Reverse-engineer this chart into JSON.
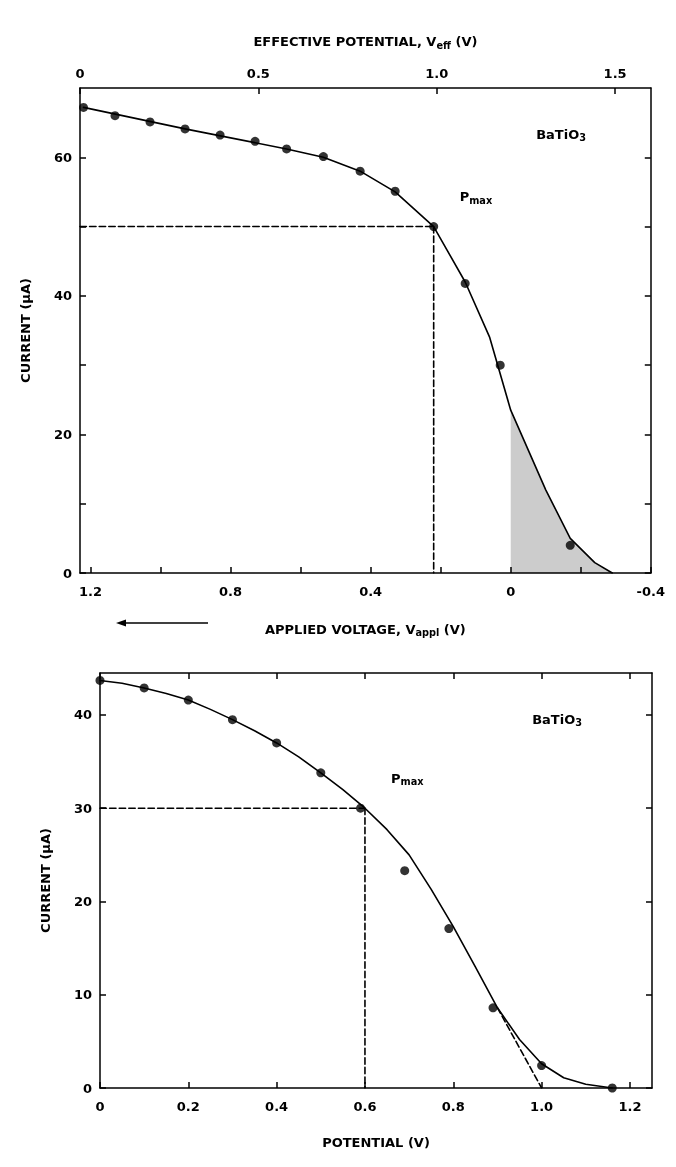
{
  "chart_data": [
    {
      "type": "scatter",
      "xlabel": "APPLIED VOLTAGE, V$_{appl}$ (V)",
      "x2label": "EFFECTIVE POTENTIAL, V$_{eff}$ (V)",
      "ylabel": "CURRENT (μA)",
      "xlim": [
        1.23,
        -0.4
      ],
      "xticks": [
        1.2,
        {
          "value": 1,
          "label": null
        },
        0.8,
        {
          "value": 0.6,
          "label": null
        },
        0.4,
        {
          "value": 0.2,
          "label": null
        },
        0,
        {
          "value": -0.2,
          "label": null
        },
        -0.4
      ],
      "x2lim": [
        0,
        1.6
      ],
      "x2ticks": [
        0,
        0.5,
        {
          "value": 1,
          "label": "1.0"
        },
        1.5
      ],
      "ylim": [
        0,
        70
      ],
      "yticks": [
        0,
        {
          "value": 10,
          "label": null
        },
        20,
        {
          "value": 30,
          "label": null
        },
        40,
        {
          "value": 50,
          "label": null
        },
        60
      ],
      "grid": false,
      "series": [
        {
          "type": "line",
          "color": "#000000",
          "line_style": "solid",
          "x": [
            1.22,
            0.93,
            0.64,
            0.535,
            0.43,
            0.33,
            0.22,
            0.13,
            0.06,
            0,
            -0.1,
            -0.17,
            -0.24,
            -0.29
          ],
          "values": [
            67.2,
            64.1,
            61.2,
            60,
            58,
            55,
            50,
            42,
            34,
            23.5,
            12,
            5,
            1.5,
            0
          ]
        },
        {
          "type": "area",
          "color": "#000000",
          "x": [
            0,
            -0.1,
            -0.17,
            -0.24,
            -0.29
          ],
          "values": [
            23.5,
            12,
            5,
            1.5,
            0
          ]
        },
        {
          "type": "line",
          "color": "#000000",
          "line_style": "dashed",
          "x": [
            1.23,
            0.22
          ],
          "values": [
            50,
            50
          ]
        },
        {
          "type": "line",
          "color": "#000000",
          "line_style": "dashed",
          "x": [
            0.22,
            0.22
          ],
          "values": [
            50,
            0
          ]
        },
        {
          "type": "scatter",
          "color": "#000000",
          "marker": "circle",
          "x": [
            1.22,
            1.13,
            1.03,
            0.93,
            0.83,
            0.73,
            0.64,
            0.535,
            0.43,
            0.33,
            0.22,
            0.13,
            0.03,
            -0.17
          ],
          "values": [
            67.2,
            66,
            65.1,
            64.1,
            63.2,
            62.3,
            61.2,
            60.1,
            58,
            55.1,
            50,
            41.8,
            30,
            4
          ]
        }
      ],
      "annotations": [
        "BaTiO$_{3}$",
        {
          "text": "P$_{max}$",
          "x": 0.22,
          "y": 50
        }
      ]
    },
    {
      "type": "scatter",
      "xlabel": "POTENTIAL (V)",
      "ylabel": "CURRENT (μA)",
      "xlim": [
        0,
        1.25
      ],
      "xticks": [
        0,
        0.2,
        0.4,
        0.6,
        0.8,
        {
          "value": 1,
          "label": "1.0"
        },
        1.2
      ],
      "ylim": [
        0,
        44.5
      ],
      "yticks": [
        0,
        10,
        20,
        30,
        40
      ],
      "grid": false,
      "series": [
        {
          "type": "line",
          "color": "#000000",
          "line_style": "solid",
          "x": [
            0,
            0.05,
            0.1,
            0.15,
            0.2,
            0.25,
            0.3,
            0.35,
            0.4,
            0.45,
            0.5,
            0.55,
            0.6,
            0.65,
            0.7,
            0.75,
            0.8,
            0.85,
            0.9,
            0.95,
            1.0,
            1.05,
            1.1,
            1.16
          ],
          "values": [
            43.7,
            43.4,
            42.9,
            42.3,
            41.6,
            40.6,
            39.5,
            38.3,
            37,
            35.5,
            33.8,
            32,
            30,
            27.7,
            25,
            21.3,
            17.3,
            13,
            8.6,
            5.2,
            2.6,
            1.1,
            0.4,
            0
          ]
        },
        {
          "type": "line",
          "color": "#000000",
          "line_style": "dashed",
          "x": [
            0,
            0.6
          ],
          "values": [
            30,
            30
          ]
        },
        {
          "type": "line",
          "color": "#000000",
          "line_style": "dashed",
          "x": [
            0.6,
            0.6
          ],
          "values": [
            30,
            0
          ]
        },
        {
          "type": "line",
          "color": "#000000",
          "line_style": "dashed",
          "x": [
            0.9,
            1.0
          ],
          "values": [
            8.6,
            0
          ]
        },
        {
          "type": "scatter",
          "color": "#000000",
          "marker": "circle",
          "x": [
            0,
            0.1,
            0.2,
            0.3,
            0.4,
            0.5,
            0.59,
            0.69,
            0.79,
            0.89,
            1.0,
            1.16
          ],
          "values": [
            43.7,
            42.9,
            41.6,
            39.5,
            37,
            33.8,
            30,
            23.3,
            17.1,
            8.6,
            2.4,
            0
          ]
        }
      ],
      "annotations": [
        "BaTiO$_{3}$",
        {
          "text": "P$_{max}$",
          "x": 0.6,
          "y": 30
        }
      ]
    }
  ]
}
